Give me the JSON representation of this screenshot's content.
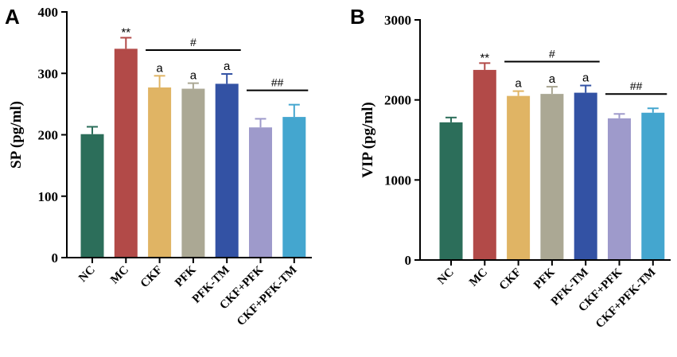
{
  "chart_data": [
    {
      "type": "bar",
      "panel": "A",
      "title": "",
      "xlabel": "",
      "ylabel": "SP (pg/ml)",
      "ylim": [
        0,
        400
      ],
      "yticks": [
        0,
        100,
        200,
        300,
        400
      ],
      "categories": [
        "NC",
        "MC",
        "CKF",
        "PFK",
        "PFK-TM",
        "CKF+PFK",
        "CKF+PFK-TM"
      ],
      "values": [
        201,
        340,
        277,
        275,
        283,
        212,
        229
      ],
      "errors": [
        12,
        18,
        19,
        9,
        16,
        14,
        20
      ],
      "colors": [
        "#2c6e5a",
        "#b24a48",
        "#e0b464",
        "#aba894",
        "#3352a4",
        "#9e9acb",
        "#44a6cf"
      ],
      "point_labels": [
        "",
        "**",
        "a",
        "a",
        "a",
        "",
        ""
      ],
      "brackets": [
        {
          "from": 2,
          "to": 4,
          "label": "#"
        },
        {
          "from": 5,
          "to": 6,
          "label": "##"
        }
      ]
    },
    {
      "type": "bar",
      "panel": "B",
      "title": "",
      "xlabel": "",
      "ylabel": "VIP (pg/ml)",
      "ylim": [
        0,
        3000
      ],
      "yticks": [
        0,
        1000,
        2000,
        3000
      ],
      "categories": [
        "NC",
        "MC",
        "CKF",
        "PFK",
        "PFK-TM",
        "CKF+PFK",
        "CKF+PFK-TM"
      ],
      "values": [
        1720,
        2375,
        2050,
        2075,
        2090,
        1770,
        1840
      ],
      "errors": [
        60,
        85,
        60,
        90,
        90,
        55,
        55
      ],
      "colors": [
        "#2c6e5a",
        "#b24a48",
        "#e0b464",
        "#aba894",
        "#3352a4",
        "#9e9acb",
        "#44a6cf"
      ],
      "point_labels": [
        "",
        "**",
        "a",
        "a",
        "a",
        "",
        ""
      ],
      "brackets": [
        {
          "from": 2,
          "to": 4,
          "label": "#"
        },
        {
          "from": 5,
          "to": 6,
          "label": "##"
        }
      ]
    }
  ]
}
